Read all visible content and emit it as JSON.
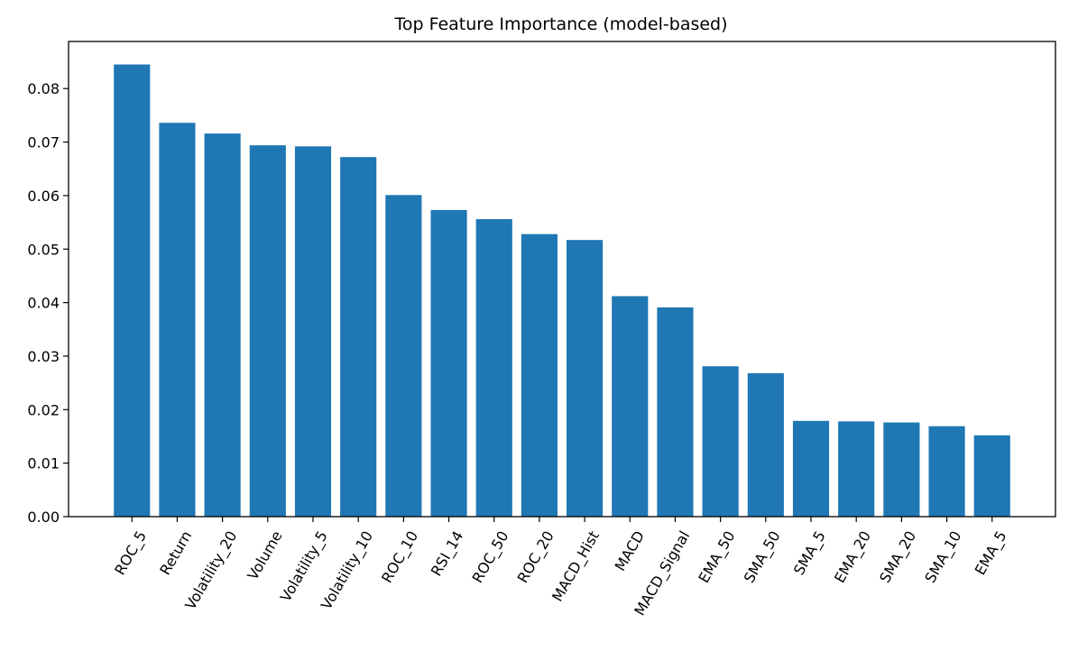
{
  "chart_data": {
    "type": "bar",
    "title": "Top Feature Importance (model-based)",
    "xlabel": "",
    "ylabel": "",
    "categories": [
      "ROC_5",
      "Return",
      "Volatility_20",
      "Volume",
      "Volatility_5",
      "Volatility_10",
      "ROC_10",
      "RSI_14",
      "ROC_50",
      "ROC_20",
      "MACD_Hist",
      "MACD",
      "MACD_Signal",
      "EMA_50",
      "SMA_50",
      "SMA_5",
      "EMA_20",
      "SMA_20",
      "SMA_10",
      "EMA_5"
    ],
    "values": [
      0.0845,
      0.0736,
      0.0716,
      0.0694,
      0.0692,
      0.0672,
      0.0601,
      0.0573,
      0.0556,
      0.0528,
      0.0517,
      0.0412,
      0.0391,
      0.0281,
      0.0268,
      0.0179,
      0.0178,
      0.0176,
      0.0169,
      0.0152
    ],
    "ylim": [
      0,
      0.0888
    ],
    "yticks": [
      0.0,
      0.01,
      0.02,
      0.03,
      0.04,
      0.05,
      0.06,
      0.07,
      0.08
    ],
    "ytick_labels": [
      "0.00",
      "0.01",
      "0.02",
      "0.03",
      "0.04",
      "0.05",
      "0.06",
      "0.07",
      "0.08"
    ],
    "grid": false,
    "bar_color": "#1f77b4"
  }
}
